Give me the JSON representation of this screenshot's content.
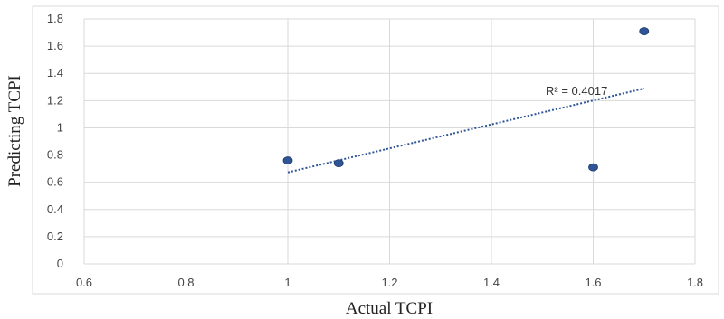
{
  "chart_data": {
    "type": "scatter",
    "title": "",
    "xlabel": "Actual TCPI",
    "ylabel": "Predicting TCPI",
    "xlim": [
      0.6,
      1.8
    ],
    "ylim": [
      0,
      1.8
    ],
    "xticks": [
      "0.6",
      "0.8",
      "1",
      "1.2",
      "1.4",
      "1.6",
      "1.8"
    ],
    "yticks": [
      "0",
      "0.2",
      "0.4",
      "0.6",
      "0.8",
      "1",
      "1.2",
      "1.4",
      "1.6",
      "1.8"
    ],
    "grid": true,
    "points": [
      {
        "x": 1.0,
        "y": 0.76
      },
      {
        "x": 1.1,
        "y": 0.74
      },
      {
        "x": 1.6,
        "y": 0.71
      },
      {
        "x": 1.7,
        "y": 1.71
      }
    ],
    "trendline": {
      "x": [
        1.0,
        1.7
      ],
      "y": [
        0.673,
        1.289
      ]
    },
    "annotation": "R² = 0.4017",
    "colors": {
      "point": "#2f5597",
      "trendline": "#2f5597",
      "grid": "#d9d9d9",
      "border": "#d9d9d9"
    }
  }
}
